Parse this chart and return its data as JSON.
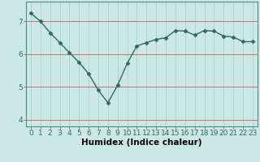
{
  "x": [
    0,
    1,
    2,
    3,
    4,
    5,
    6,
    7,
    8,
    9,
    10,
    11,
    12,
    13,
    14,
    15,
    16,
    17,
    18,
    19,
    20,
    21,
    22,
    23
  ],
  "y": [
    7.25,
    7.0,
    6.65,
    6.35,
    6.05,
    5.75,
    5.4,
    4.9,
    4.52,
    5.05,
    5.72,
    6.25,
    6.35,
    6.45,
    6.5,
    6.72,
    6.7,
    6.58,
    6.72,
    6.7,
    6.55,
    6.52,
    6.38,
    6.38
  ],
  "line_color": "#2e6b5e",
  "marker": "D",
  "marker_size": 2.5,
  "bg_color": "#cce8e4",
  "grid_color": "#aed4d0",
  "xlabel": "Humidex (Indice chaleur)",
  "xlabel_fontsize": 7.5,
  "tick_fontsize": 6.5,
  "xlim": [
    -0.5,
    23.5
  ],
  "ylim": [
    3.8,
    7.6
  ],
  "yticks": [
    4,
    5,
    6,
    7
  ],
  "xticks": [
    0,
    1,
    2,
    3,
    4,
    5,
    6,
    7,
    8,
    9,
    10,
    11,
    12,
    13,
    14,
    15,
    16,
    17,
    18,
    19,
    20,
    21,
    22,
    23
  ],
  "hgrid_color": "#c87070",
  "hgrid_lw": 0.7,
  "vgrid_color": "#aed4d0",
  "vgrid_lw": 0.7,
  "spine_color": "#558888",
  "line_lw": 1.0
}
